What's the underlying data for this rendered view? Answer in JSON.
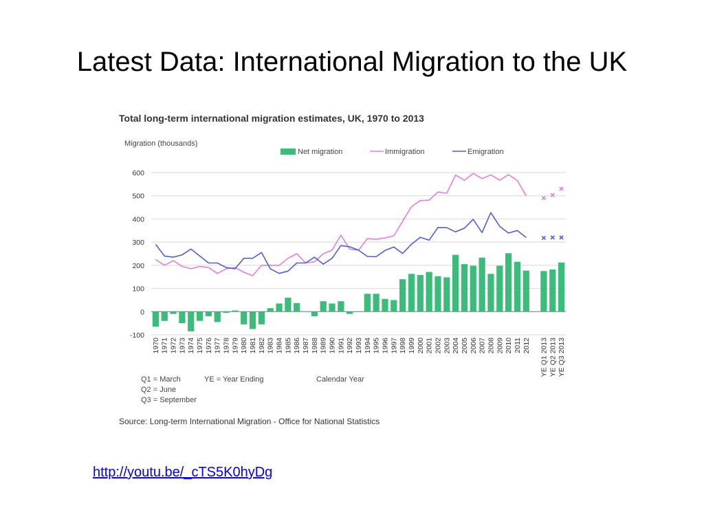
{
  "slide": {
    "title": "Latest Data: International Migration to the UK",
    "link_text": "http://youtu.be/_cTS5K0hyDg"
  },
  "chart_data": {
    "type": "bar",
    "title": "Total long-term international migration estimates, UK, 1970 to 2013",
    "ylabel": "Migration (thousands)",
    "xlabel": "Calendar Year",
    "ylim": [
      -100,
      600
    ],
    "yticks": [
      600,
      500,
      400,
      300,
      200,
      100,
      0,
      -100
    ],
    "grid": true,
    "legend_placement": "top",
    "legend": [
      "Net migration",
      "Immigration",
      "Emigration"
    ],
    "colors": {
      "net": "#3dbb7a",
      "immigration": "#e07ee0",
      "emigration": "#5060c8"
    },
    "categories": [
      "1970",
      "1971",
      "1972",
      "1973",
      "1974",
      "1975",
      "1976",
      "1977",
      "1978",
      "1979",
      "1980",
      "1981",
      "1982",
      "1983",
      "1984",
      "1985",
      "1986",
      "1987",
      "1988",
      "1989",
      "1990",
      "1991",
      "1992",
      "1993",
      "1994",
      "1995",
      "1996",
      "1997",
      "1998",
      "1999",
      "2000",
      "2001",
      "2002",
      "2003",
      "2004",
      "2005",
      "2006",
      "2007",
      "2008",
      "2009",
      "2010",
      "2011",
      "2012",
      "",
      "YE Q1 2013",
      "YE Q2 2013",
      "YE Q3 2013"
    ],
    "series": [
      {
        "name": "Net migration",
        "kind": "bar",
        "values": [
          -65,
          -40,
          -10,
          -50,
          -85,
          -40,
          -20,
          -45,
          -5,
          5,
          -55,
          -75,
          -55,
          15,
          35,
          60,
          37,
          0,
          -20,
          45,
          35,
          45,
          -10,
          0,
          77,
          77,
          55,
          50,
          140,
          163,
          158,
          171,
          153,
          148,
          245,
          205,
          198,
          233,
          163,
          198,
          252,
          215,
          177,
          null,
          175,
          182,
          212
        ]
      },
      {
        "name": "Immigration",
        "kind": "line",
        "values": [
          225,
          200,
          220,
          195,
          185,
          195,
          190,
          165,
          185,
          190,
          170,
          155,
          200,
          200,
          200,
          230,
          250,
          210,
          215,
          250,
          265,
          330,
          270,
          265,
          315,
          312,
          318,
          327,
          390,
          453,
          479,
          481,
          516,
          511,
          589,
          567,
          596,
          574,
          590,
          567,
          591,
          566,
          500,
          null,
          490,
          503,
          530
        ]
      },
      {
        "name": "Emigration",
        "kind": "line",
        "values": [
          290,
          240,
          235,
          245,
          270,
          240,
          210,
          210,
          190,
          185,
          230,
          230,
          255,
          185,
          165,
          175,
          210,
          210,
          235,
          205,
          230,
          285,
          280,
          265,
          238,
          237,
          264,
          279,
          251,
          291,
          321,
          308,
          363,
          362,
          344,
          360,
          398,
          341,
          427,
          368,
          339,
          350,
          320,
          null,
          318,
          320,
          320
        ]
      }
    ]
  },
  "notes": {
    "q1": "Q1 = March",
    "q2": "Q2 = June",
    "q3": "Q3 = September",
    "ye": "YE = Year Ending"
  },
  "source": "Source: Long-term International Migration - Office for National Statistics"
}
